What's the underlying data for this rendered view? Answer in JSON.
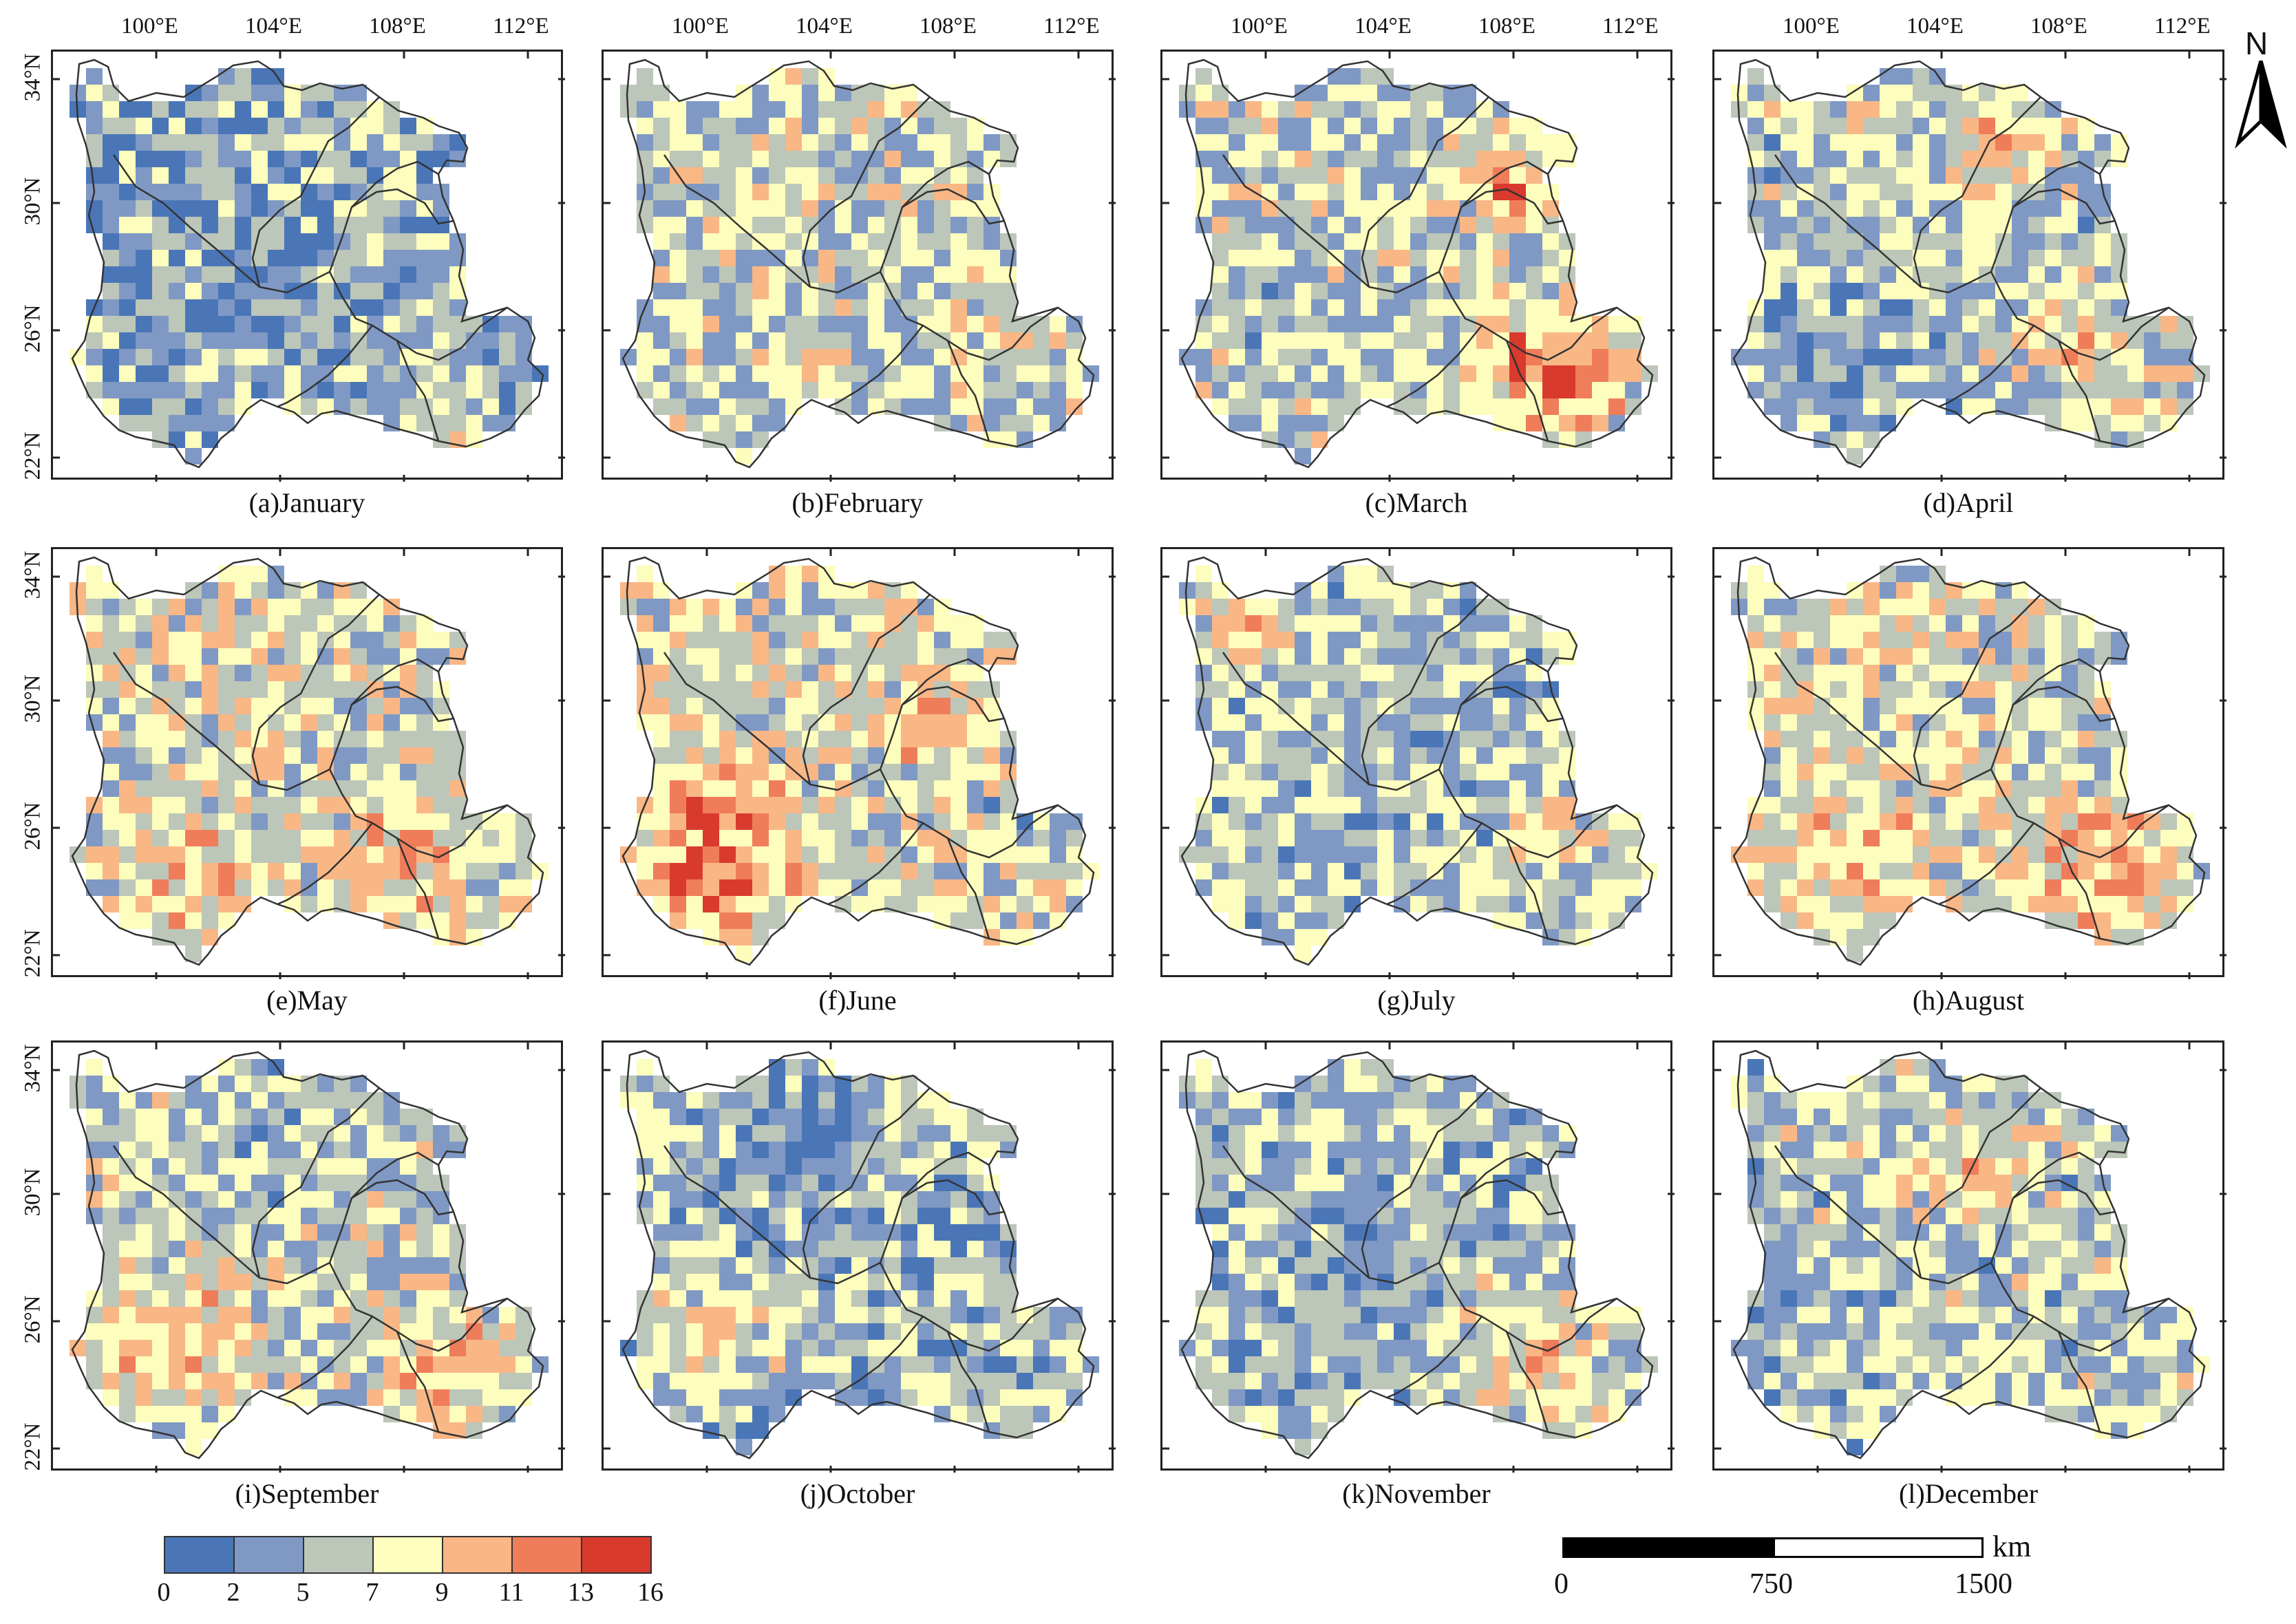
{
  "panels": [
    {
      "caption": "(a)January",
      "scheme": "jan"
    },
    {
      "caption": "(b)February",
      "scheme": "feb"
    },
    {
      "caption": "(c)March",
      "scheme": "mar"
    },
    {
      "caption": "(d)April",
      "scheme": "apr"
    },
    {
      "caption": "(e)May",
      "scheme": "may"
    },
    {
      "caption": "(f)June",
      "scheme": "jun"
    },
    {
      "caption": "(g)July",
      "scheme": "jul"
    },
    {
      "caption": "(h)August",
      "scheme": "aug"
    },
    {
      "caption": "(i)September",
      "scheme": "sep"
    },
    {
      "caption": "(j)October",
      "scheme": "oct"
    },
    {
      "caption": "(k)November",
      "scheme": "nov"
    },
    {
      "caption": "(l)December",
      "scheme": "dec"
    }
  ],
  "axes": {
    "lon_labels": [
      "100°E",
      "104°E",
      "108°E",
      "112°E"
    ],
    "lat_labels": [
      "34°N",
      "30°N",
      "26°N",
      "22°N"
    ]
  },
  "legend": {
    "classes": [
      "0",
      "2",
      "5",
      "7",
      "9",
      "11",
      "13",
      "16"
    ],
    "colors": [
      "#4a76b8",
      "#7f99c4",
      "#bcc6b9",
      "#fdfdbd",
      "#f9b786",
      "#ef7d5a",
      "#d93a2e"
    ]
  },
  "north": {
    "label": "N"
  },
  "scalebar": {
    "unit": "km",
    "ticks": [
      "0",
      "750",
      "1500"
    ]
  }
}
